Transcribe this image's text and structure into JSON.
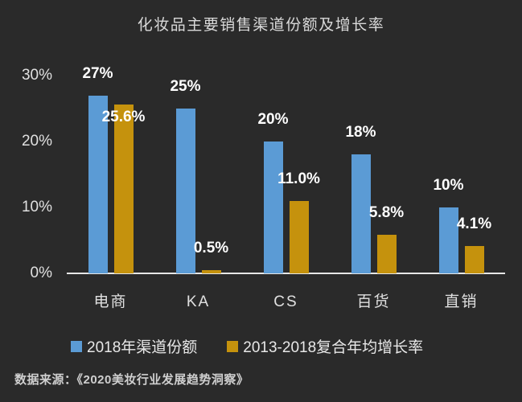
{
  "title": "化妆品主要销售渠道份额及增长率",
  "source_text": "数据来源：《2020美妆行业发展趋势洞察》",
  "colors": {
    "background": "#2A2A2A",
    "series_blue": "#5B9BD5",
    "series_gold": "#C5920D",
    "axis_line": "#E6E6E6",
    "title_text": "#D9D9D9",
    "data_label_text": "#FFFFFF",
    "tick_text": "#E0E0E0"
  },
  "chart_data": {
    "type": "bar",
    "title": "化妆品主要销售渠道份额及增长率",
    "categories": [
      "电商",
      "KA",
      "CS",
      "百货",
      "直销"
    ],
    "series": [
      {
        "name": "2018年渠道份额",
        "color": "#5B9BD5",
        "values": [
          27,
          25,
          20,
          18,
          10
        ],
        "labels": [
          "27%",
          "25%",
          "20%",
          "18%",
          "10%"
        ]
      },
      {
        "name": "2013-2018复合年均增长率",
        "color": "#C5920D",
        "values": [
          25.6,
          0.5,
          11.0,
          5.8,
          4.1
        ],
        "labels": [
          "25.6%",
          "0.5%",
          "11.0%",
          "5.8%",
          "4.1%"
        ]
      }
    ],
    "y_axis": {
      "tick_labels": [
        "30%",
        "20%",
        "10%",
        "0%"
      ],
      "tick_values": [
        30,
        20,
        10,
        0
      ],
      "min": 0,
      "max": 30
    },
    "grid": false,
    "legend_position": "bottom",
    "source": "数据来源：《2020美妆行业发展趋势洞察》"
  }
}
